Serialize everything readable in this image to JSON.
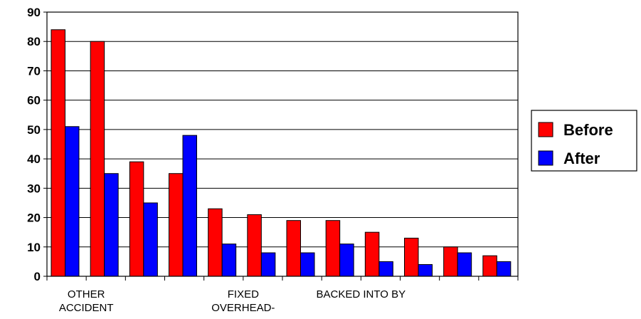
{
  "chart_data": {
    "type": "bar",
    "categories": [
      "OTHER ACCIDENT",
      "",
      "",
      "",
      "FIXED OVERHEAD-",
      "",
      "",
      "BACKED INTO BY",
      "",
      "",
      "",
      ""
    ],
    "x_tick_labels": [
      {
        "index": 0,
        "lines": [
          "OTHER",
          "ACCIDENT"
        ]
      },
      {
        "index": 4,
        "lines": [
          "FIXED",
          "OVERHEAD-"
        ]
      },
      {
        "index": 7,
        "lines": [
          "BACKED INTO BY"
        ]
      }
    ],
    "series": [
      {
        "name": "Before",
        "color": "#ff0000",
        "values": [
          84,
          80,
          39,
          35,
          23,
          21,
          19,
          19,
          15,
          13,
          10,
          7
        ]
      },
      {
        "name": "After",
        "color": "#0000ff",
        "values": [
          51,
          35,
          25,
          48,
          11,
          8,
          8,
          11,
          5,
          4,
          8,
          5
        ]
      }
    ],
    "ylim": [
      0,
      90
    ],
    "yticks": [
      0,
      10,
      20,
      30,
      40,
      50,
      60,
      70,
      80,
      90
    ],
    "grid": true,
    "legend_position": "right",
    "title": "",
    "xlabel": "",
    "ylabel": ""
  }
}
